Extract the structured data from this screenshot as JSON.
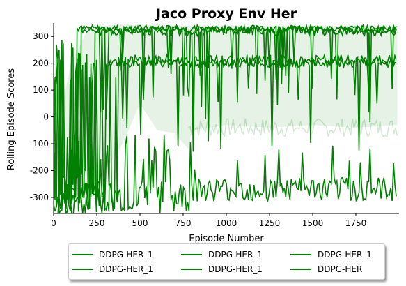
{
  "chart_data": {
    "type": "line",
    "title": "Jaco Proxy Env Her",
    "xlabel": "Episode Number",
    "ylabel": "Rolling Episode Scores",
    "xlim": [
      0,
      2000
    ],
    "ylim": [
      -360,
      350
    ],
    "xticks": [
      0,
      250,
      500,
      750,
      1000,
      1250,
      1500,
      1750
    ],
    "yticks": [
      -300,
      -200,
      -100,
      0,
      100,
      200,
      300
    ],
    "grid": false,
    "legend_position": "bottom-center",
    "line_color": "#008000",
    "band_color": "#008000",
    "series": [
      {
        "name": "DDPG-HER_1",
        "rise": 130,
        "start": -300,
        "plateau": 330,
        "noise": 12
      },
      {
        "name": "DDPG-HER_1",
        "rise": 160,
        "start": -320,
        "plateau": 325,
        "noise": 14
      },
      {
        "name": "DDPG-HER_1",
        "rise": 240,
        "start": -250,
        "plateau": 320,
        "noise": 18
      },
      {
        "name": "DDPG-HER_1",
        "rise": 380,
        "start": -300,
        "plateau": 210,
        "noise": 22
      },
      {
        "name": "DDPG-HER_1",
        "rise": 800,
        "start": -300,
        "plateau": -270,
        "noise": 45
      },
      {
        "name": "DDPG-HER",
        "rise": 300,
        "start": -300,
        "plateau": 200,
        "noise": 15
      }
    ],
    "band": {
      "x": [
        0,
        100,
        200,
        300,
        400,
        500,
        600,
        700,
        780,
        800,
        1000,
        1250,
        1500,
        1750,
        1990
      ],
      "upper": [
        -120,
        200,
        330,
        340,
        345,
        340,
        345,
        340,
        340,
        340,
        340,
        340,
        340,
        340,
        340
      ],
      "lower": [
        -340,
        -300,
        -250,
        -200,
        -100,
        50,
        -50,
        -60,
        -120,
        -50,
        -30,
        -40,
        -30,
        -40,
        -30
      ]
    }
  },
  "legend": {
    "items": [
      "DDPG-HER_1",
      "DDPG-HER_1",
      "DDPG-HER_1",
      "DDPG-HER_1",
      "DDPG-HER_1",
      "DDPG-HER"
    ]
  }
}
